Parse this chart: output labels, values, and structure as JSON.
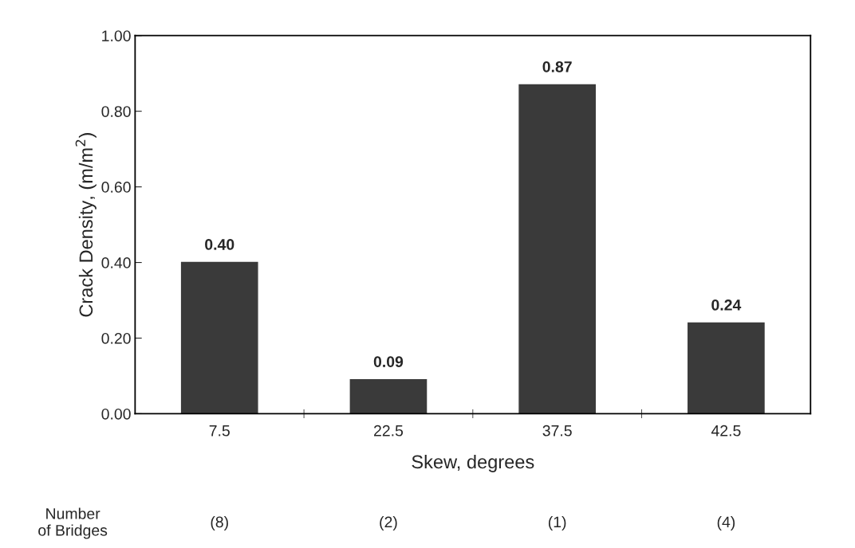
{
  "chart_data": {
    "type": "bar",
    "categories": [
      "7.5",
      "22.5",
      "37.5",
      "42.5"
    ],
    "values": [
      0.4,
      0.09,
      0.87,
      0.24
    ],
    "color": "#3a3a3a",
    "xlabel": "Skew, degrees",
    "ylabel": "Crack Density, (m/m$^{2}$)",
    "ylim": [
      0,
      1
    ],
    "yticks": [
      {
        "value": 0,
        "label": "0.00"
      },
      {
        "value": 0.2,
        "label": "0.20"
      },
      {
        "value": 0.4,
        "label": "0.40"
      },
      {
        "value": 0.6,
        "label": "0.60"
      },
      {
        "value": 0.8,
        "label": "0.80"
      },
      {
        "value": 1,
        "label": "1.00"
      }
    ],
    "value_labels": [
      "0.40",
      "0.09",
      "0.87",
      "0.24"
    ],
    "annotations": [
      "Number\nof Bridges",
      "(8)",
      "(2)",
      "(1)",
      "(4)"
    ],
    "grid": false,
    "legend": false
  }
}
